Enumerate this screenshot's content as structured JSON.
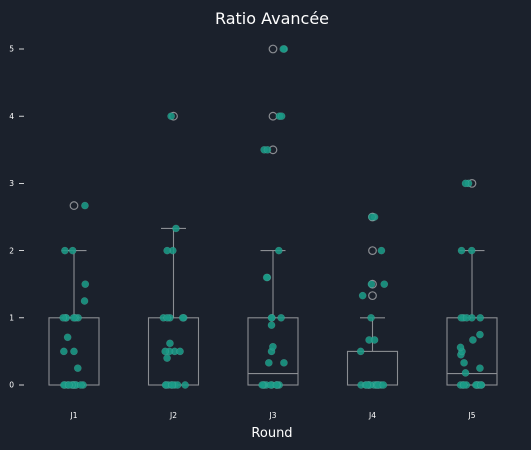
{
  "chart_data": {
    "type": "box",
    "title": "Ratio Avancée",
    "xlabel": "Round",
    "ylabel": "",
    "categories": [
      "J1",
      "J2",
      "J3",
      "J4",
      "J5"
    ],
    "y_ticks": [
      "0",
      "1",
      "2",
      "3",
      "4",
      "5"
    ],
    "ylim": [
      -0.2,
      5.2
    ],
    "grid": false,
    "boxes": [
      {
        "category": "J1",
        "q1": 0,
        "median": 0,
        "q3": 1,
        "whisker_low": 0,
        "whisker_high": 2,
        "outliers": [
          2.67
        ]
      },
      {
        "category": "J2",
        "q1": 0,
        "median": 0,
        "q3": 1,
        "whisker_low": 0,
        "whisker_high": 2.33,
        "outliers": [
          4
        ]
      },
      {
        "category": "J3",
        "q1": 0,
        "median": 0.17,
        "q3": 1,
        "whisker_low": 0,
        "whisker_high": 2,
        "outliers": [
          5,
          4,
          3.5
        ]
      },
      {
        "category": "J4",
        "q1": 0,
        "median": 0,
        "q3": 0.5,
        "whisker_low": 0,
        "whisker_high": 1,
        "outliers": [
          2.5,
          2,
          1.5,
          1.33
        ]
      },
      {
        "category": "J5",
        "q1": 0,
        "median": 0.17,
        "q3": 1,
        "whisker_low": 0,
        "whisker_high": 2,
        "outliers": [
          3
        ]
      }
    ],
    "points": [
      [
        0,
        0,
        0,
        0,
        0,
        0,
        0,
        0,
        0,
        0,
        0,
        0,
        0.25,
        0.5,
        0.5,
        0.71,
        1,
        1,
        1,
        1,
        1,
        1,
        1.25,
        1.5,
        2,
        2,
        2.67
      ],
      [
        0,
        0,
        0,
        0,
        0,
        0,
        0,
        0,
        0.4,
        0.5,
        0.5,
        0.5,
        0.5,
        0.62,
        1,
        1,
        1,
        1,
        1,
        2,
        2,
        2.33,
        4
      ],
      [
        0,
        0,
        0,
        0,
        0,
        0,
        0,
        0,
        0,
        0,
        0.33,
        0.33,
        0.5,
        0.57,
        0.89,
        1,
        1,
        1,
        1.6,
        1.6,
        2,
        3.5,
        3.5,
        4,
        4,
        5,
        5
      ],
      [
        0,
        0,
        0,
        0,
        0,
        0,
        0,
        0,
        0,
        0,
        0,
        0,
        0,
        0.5,
        0.67,
        0.67,
        1,
        1.33,
        1.5,
        1.5,
        2,
        2.5,
        2.5
      ],
      [
        0,
        0,
        0,
        0,
        0,
        0,
        0,
        0,
        0,
        0,
        0.18,
        0.25,
        0.33,
        0.45,
        0.5,
        0.56,
        0.67,
        0.75,
        1,
        1,
        1,
        1,
        1,
        2,
        2,
        3,
        3
      ]
    ],
    "colors": {
      "point": "#1a9a86",
      "box_line": "#8a8d92",
      "text": "#ffffff",
      "background": "#1b212c"
    }
  }
}
